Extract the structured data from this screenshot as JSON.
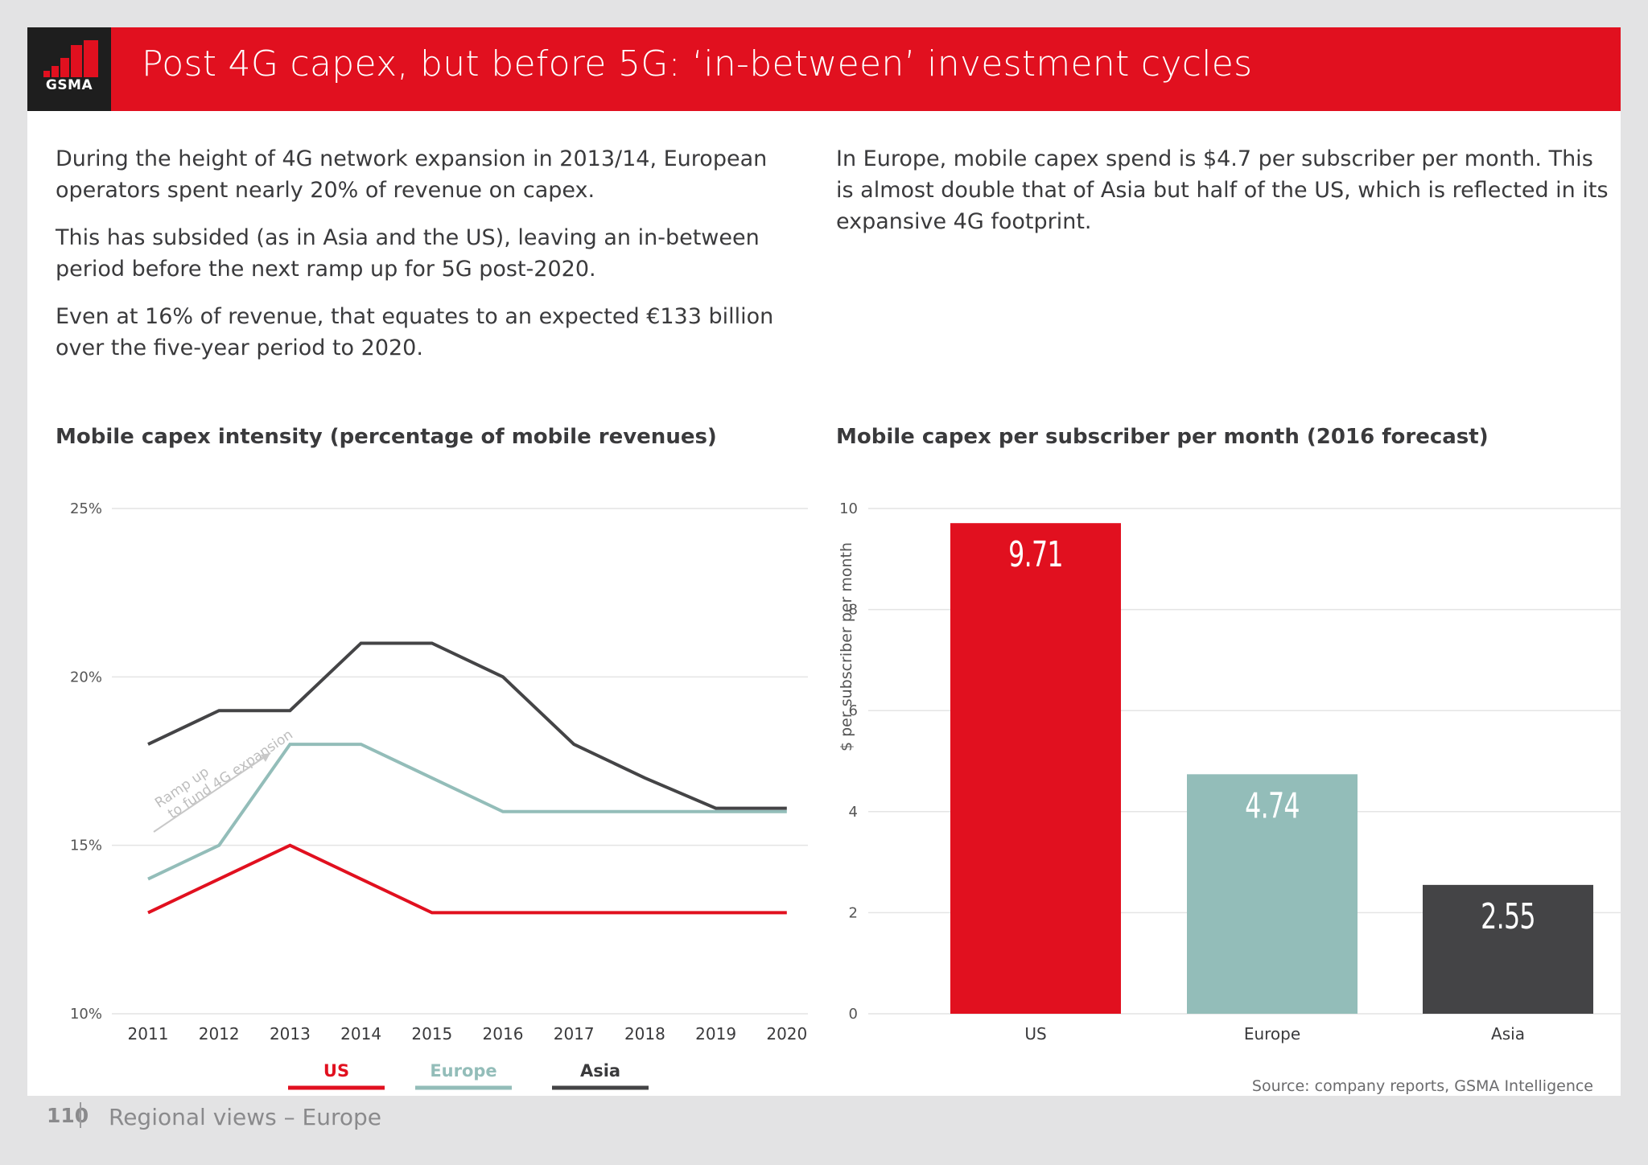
{
  "header": {
    "logo": "GSMA",
    "title": "Post 4G capex, but before 5G: ‘in-between’ investment cycles"
  },
  "intro": {
    "left_paragraphs": [
      "During the height of 4G network expansion in 2013/14, European operators spent nearly 20% of revenue on capex.",
      "This has subsided (as in Asia and the US), leaving an in-between period before the next ramp up for 5G post-2020.",
      "Even at 16% of revenue, that equates to an expected €133 billion over the five-year period to 2020."
    ],
    "right_paragraphs": [
      "In Europe, mobile capex spend is $4.7 per subscriber per month. This is almost double that of Asia but half of the US, which is reflected in its expansive 4G footprint."
    ]
  },
  "footer": {
    "page_number": "110",
    "section": "Regional views – Europe",
    "source": "Source: company reports, GSMA Intelligence"
  },
  "chart_data": [
    {
      "type": "line",
      "title": "Mobile capex intensity (percentage of mobile revenues)",
      "x": [
        "2011",
        "2012",
        "2013",
        "2014",
        "2015",
        "2016",
        "2017",
        "2018",
        "2019",
        "2020"
      ],
      "ylim": [
        10,
        25
      ],
      "yticks": [
        "10%",
        "15%",
        "20%",
        "25%"
      ],
      "grid": true,
      "legend_position": "bottom",
      "annotation": "Ramp up to fund 4G expansion",
      "series": [
        {
          "name": "US",
          "color": "#e1101f",
          "values": [
            13,
            14,
            15,
            14,
            13,
            13,
            13,
            13,
            13,
            13
          ]
        },
        {
          "name": "Europe",
          "color": "#93bdb9",
          "values": [
            14,
            15,
            18,
            18,
            17,
            16,
            16,
            16,
            16,
            16
          ]
        },
        {
          "name": "Asia",
          "color": "#444446",
          "values": [
            18,
            19,
            19,
            21,
            21,
            20,
            18,
            17,
            16.1,
            16.1
          ]
        }
      ]
    },
    {
      "type": "bar",
      "title": "Mobile capex per subscriber per month (2016 forecast)",
      "ylabel": "$ per subscriber per month",
      "categories": [
        "US",
        "Europe",
        "Asia"
      ],
      "values": [
        9.71,
        4.74,
        2.55
      ],
      "value_labels": [
        "9.71",
        "4.74",
        "2.55"
      ],
      "colors": [
        "#e1101f",
        "#93bdb9",
        "#444446"
      ],
      "ylim": [
        0,
        10
      ],
      "yticks": [
        "0",
        "2",
        "4",
        "6",
        "8",
        "10"
      ],
      "grid": true
    }
  ]
}
